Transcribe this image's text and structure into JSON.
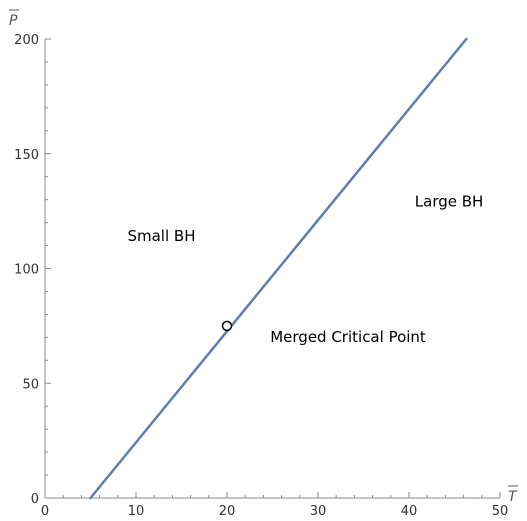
{
  "chart_data": {
    "type": "line",
    "xlabel": "T",
    "ylabel": "P",
    "xlim": [
      0,
      50
    ],
    "ylim": [
      0,
      200
    ],
    "x_ticks": [
      0,
      10,
      20,
      30,
      40,
      50
    ],
    "y_ticks": [
      0,
      50,
      100,
      150,
      200
    ],
    "x_minor_step": 2,
    "y_minor_step": 10,
    "grid": false,
    "series": [
      {
        "x": [
          5,
          46.3
        ],
        "y": [
          0,
          200
        ],
        "color": "#5b7fae"
      }
    ],
    "critical_point": {
      "x": 20,
      "y": 75
    },
    "annotations": [
      {
        "text": "Small BH",
        "x": 12.8,
        "y": 112
      },
      {
        "text": "Large BH",
        "x": 44.4,
        "y": 127
      },
      {
        "text": "Merged Critical Point",
        "x": 33.3,
        "y": 68
      }
    ]
  }
}
